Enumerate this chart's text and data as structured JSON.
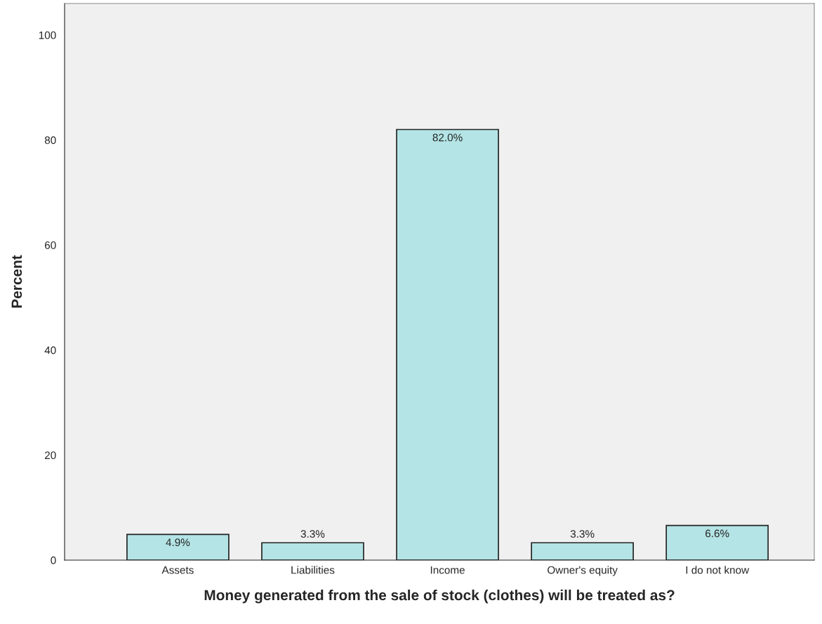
{
  "chart_data": {
    "type": "bar",
    "xlabel": "Money generated from the sale of stock (clothes) will be treated as?",
    "ylabel": "Percent",
    "categories": [
      "Assets",
      "Liabilities",
      "Income",
      "Owner's equity",
      "I do not know"
    ],
    "values": [
      4.9,
      3.3,
      82.0,
      3.3,
      6.6
    ],
    "value_labels": [
      "4.9%",
      "3.3%",
      "82.0%",
      "3.3%",
      "6.6%"
    ],
    "color": "#b4e4e5",
    "ylim": [
      0,
      106
    ],
    "yticks": [
      0,
      20,
      40,
      60,
      80,
      100
    ],
    "grid": false,
    "legend": false
  }
}
